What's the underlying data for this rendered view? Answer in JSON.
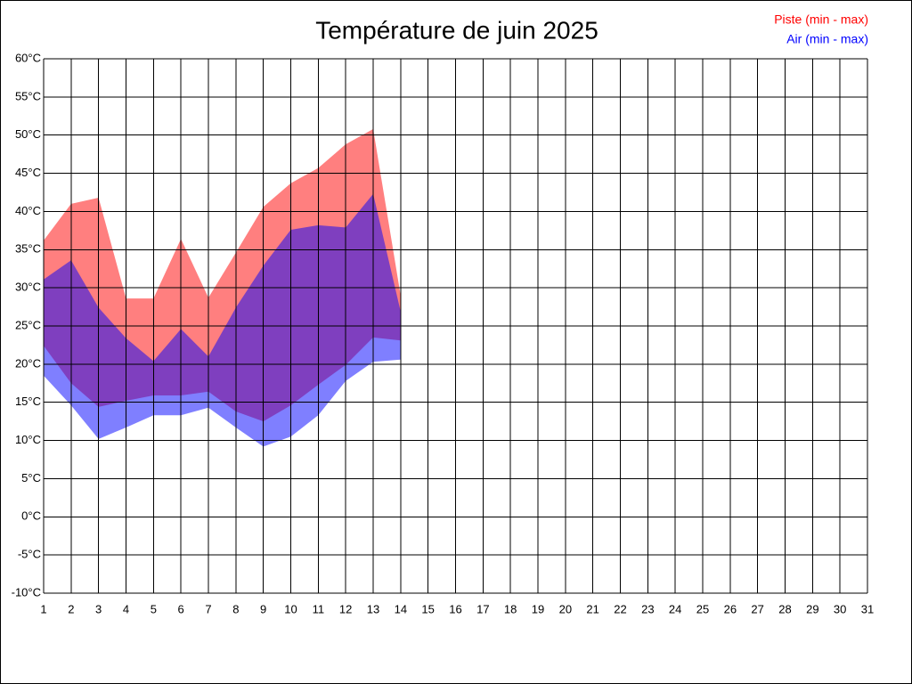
{
  "chart_data": {
    "type": "range-area",
    "title": "Température de juin 2025",
    "x": [
      1,
      2,
      3,
      4,
      5,
      6,
      7,
      8,
      9,
      10,
      11,
      12,
      13,
      14
    ],
    "series": [
      {
        "name": "Piste (min - max)",
        "color": "#ff0000",
        "min": [
          22.4,
          17.5,
          14.4,
          15.2,
          15.9,
          15.9,
          16.4,
          13.8,
          12.5,
          14.6,
          17.3,
          19.9,
          23.5,
          23.1
        ],
        "max": [
          36.2,
          41.0,
          41.8,
          28.6,
          28.6,
          36.4,
          28.7,
          34.6,
          40.6,
          43.7,
          45.7,
          48.8,
          50.8,
          29.0
        ]
      },
      {
        "name": "Air (min - max)",
        "color": "#0000ff",
        "min": [
          18.5,
          14.6,
          10.2,
          11.7,
          13.3,
          13.3,
          14.3,
          11.7,
          9.2,
          10.5,
          13.3,
          17.8,
          20.3,
          20.6
        ],
        "max": [
          31.1,
          33.6,
          27.4,
          23.4,
          20.4,
          24.6,
          21.0,
          27.4,
          32.9,
          37.6,
          38.2,
          37.9,
          42.3,
          26.9
        ]
      }
    ],
    "xlim": [
      1,
      31
    ],
    "xticks": [
      1,
      2,
      3,
      4,
      5,
      6,
      7,
      8,
      9,
      10,
      11,
      12,
      13,
      14,
      15,
      16,
      17,
      18,
      19,
      20,
      21,
      22,
      23,
      24,
      25,
      26,
      27,
      28,
      29,
      30,
      31
    ],
    "ylim": [
      -10,
      60
    ],
    "yticks": [
      {
        "value": -10,
        "label": "-10°C"
      },
      {
        "value": -5,
        "label": "-5°C"
      },
      {
        "value": 0,
        "label": "0°C"
      },
      {
        "value": 5,
        "label": "5°C"
      },
      {
        "value": 10,
        "label": "10°C"
      },
      {
        "value": 15,
        "label": "15°C"
      },
      {
        "value": 20,
        "label": "20°C"
      },
      {
        "value": 25,
        "label": "25°C"
      },
      {
        "value": 30,
        "label": "30°C"
      },
      {
        "value": 35,
        "label": "35°C"
      },
      {
        "value": 40,
        "label": "40°C"
      },
      {
        "value": 45,
        "label": "45°C"
      },
      {
        "value": 50,
        "label": "50°C"
      },
      {
        "value": 55,
        "label": "55°C"
      },
      {
        "value": 60,
        "label": "60°C"
      }
    ],
    "grid": true,
    "zero_line": true,
    "legend": "top-right"
  }
}
